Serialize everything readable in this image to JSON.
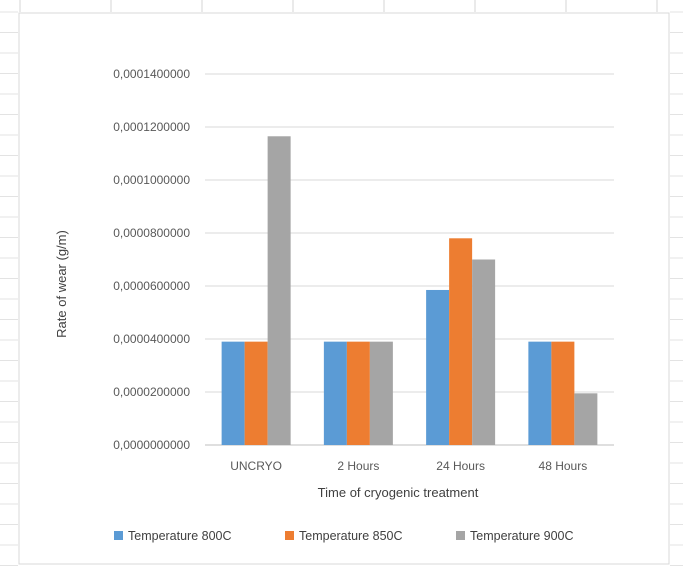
{
  "chart_data": {
    "type": "bar",
    "title": "",
    "xlabel": "Time of cryogenic treatment",
    "ylabel": "Rate of wear (g/m)",
    "categories": [
      "UNCRYO",
      "2 Hours",
      "24 Hours",
      "48 Hours"
    ],
    "series": [
      {
        "name": "Temperature 800C",
        "color": "#5b9bd5",
        "values": [
          3.9e-05,
          3.9e-05,
          5.85e-05,
          3.9e-05
        ]
      },
      {
        "name": "Temperature 850C",
        "color": "#ed7d31",
        "values": [
          3.9e-05,
          3.9e-05,
          7.8e-05,
          3.9e-05
        ]
      },
      {
        "name": "Temperature 900C",
        "color": "#a5a5a5",
        "values": [
          0.0001165,
          3.9e-05,
          7e-05,
          1.95e-05
        ]
      }
    ],
    "ylim": [
      0,
      0.00014
    ],
    "yticks": [
      "0,0000000000",
      "0,0000200000",
      "0,0000400000",
      "0,0000600000",
      "0,0000800000",
      "0,0001000000",
      "0,0001200000",
      "0,0001400000"
    ],
    "grid": true,
    "legend_position": "bottom"
  }
}
